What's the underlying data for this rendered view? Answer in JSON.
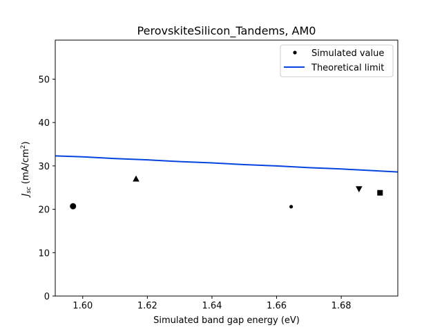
{
  "chart_data": {
    "type": "scatter",
    "title": "PerovskiteSilicon_Tandems, AM0",
    "xlabel": "Simulated band gap energy (eV)",
    "ylabel_main": "J",
    "ylabel_sub": "sc",
    "ylabel_units": "(mA/cm",
    "ylabel_sup": "2",
    "ylabel_close": ")",
    "xlim": [
      1.5915,
      1.6975
    ],
    "ylim": [
      0,
      59
    ],
    "xticks": [
      1.6,
      1.62,
      1.64,
      1.66,
      1.68
    ],
    "xtick_labels": [
      "1.60",
      "1.62",
      "1.64",
      "1.66",
      "1.68"
    ],
    "yticks": [
      0,
      10,
      20,
      30,
      40,
      50
    ],
    "ytick_labels": [
      "0",
      "10",
      "20",
      "30",
      "40",
      "50"
    ],
    "grid": false,
    "legend_position": "top-right",
    "series": [
      {
        "name": "Simulated value",
        "points": [
          {
            "x": 1.597,
            "y": 20.7,
            "marker": "circle-large"
          },
          {
            "x": 1.6165,
            "y": 27.0,
            "marker": "triangle-up"
          },
          {
            "x": 1.6645,
            "y": 20.6,
            "marker": "circle-small"
          },
          {
            "x": 1.6855,
            "y": 24.7,
            "marker": "triangle-down"
          },
          {
            "x": 1.692,
            "y": 23.8,
            "marker": "square"
          }
        ],
        "color": "#000000"
      },
      {
        "name": "Theoretical limit",
        "x": [
          1.5915,
          1.6,
          1.61,
          1.62,
          1.63,
          1.64,
          1.65,
          1.66,
          1.67,
          1.68,
          1.69,
          1.6975
        ],
        "y": [
          32.3,
          32.1,
          31.7,
          31.4,
          31.0,
          30.7,
          30.3,
          30.0,
          29.6,
          29.3,
          28.9,
          28.6
        ],
        "color": "#0343df"
      }
    ]
  }
}
